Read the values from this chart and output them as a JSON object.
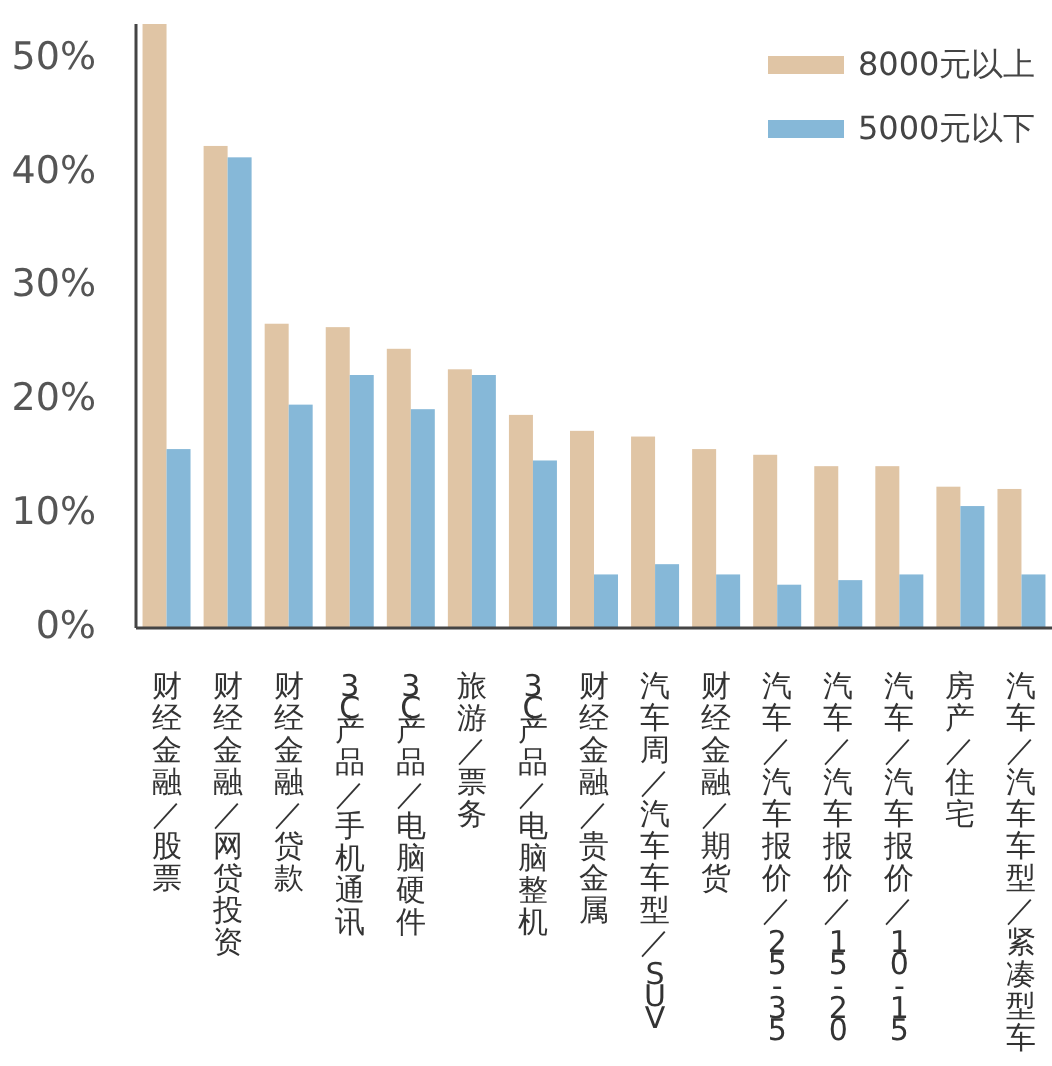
{
  "chart_data": {
    "type": "bar",
    "categories": [
      "财经金融／股票",
      "财经金融／网贷投资",
      "财经金融／贷款",
      "3C产品／手机通讯",
      "3C产品／电脑硬件",
      "旅游／票务",
      "3C产品／电脑整机",
      "财经金融／贵金属",
      "汽车周／汽车车型／SUV",
      "财经金融／期货",
      "汽车／汽车报价／25-35",
      "汽车／汽车报价／15-20",
      "汽车／汽车报价／10-15",
      "房产／住宅",
      "汽车／汽车车型／紧凑型车"
    ],
    "series": [
      {
        "name": "8000元以上",
        "color": "#e0c5a5",
        "values": [
          53,
          42.3,
          26.7,
          26.4,
          24.5,
          22.7,
          18.7,
          17.3,
          16.8,
          15.7,
          15.2,
          14.2,
          14.2,
          12.4,
          12.2
        ]
      },
      {
        "name": "5000元以下",
        "color": "#86b8d8",
        "values": [
          15.7,
          41.3,
          19.6,
          22.2,
          19.2,
          22.2,
          14.7,
          4.7,
          5.6,
          4.7,
          3.8,
          4.2,
          4.7,
          10.7,
          4.7
        ]
      }
    ],
    "ylim": [
      0,
      53
    ],
    "yticks": [
      {
        "value": 0,
        "label": "0%"
      },
      {
        "value": 10,
        "label": "10%"
      },
      {
        "value": 20,
        "label": "20%"
      },
      {
        "value": 30,
        "label": "30%"
      },
      {
        "value": 40,
        "label": "40%"
      },
      {
        "value": 50,
        "label": "50%"
      }
    ],
    "legend": "top right"
  }
}
